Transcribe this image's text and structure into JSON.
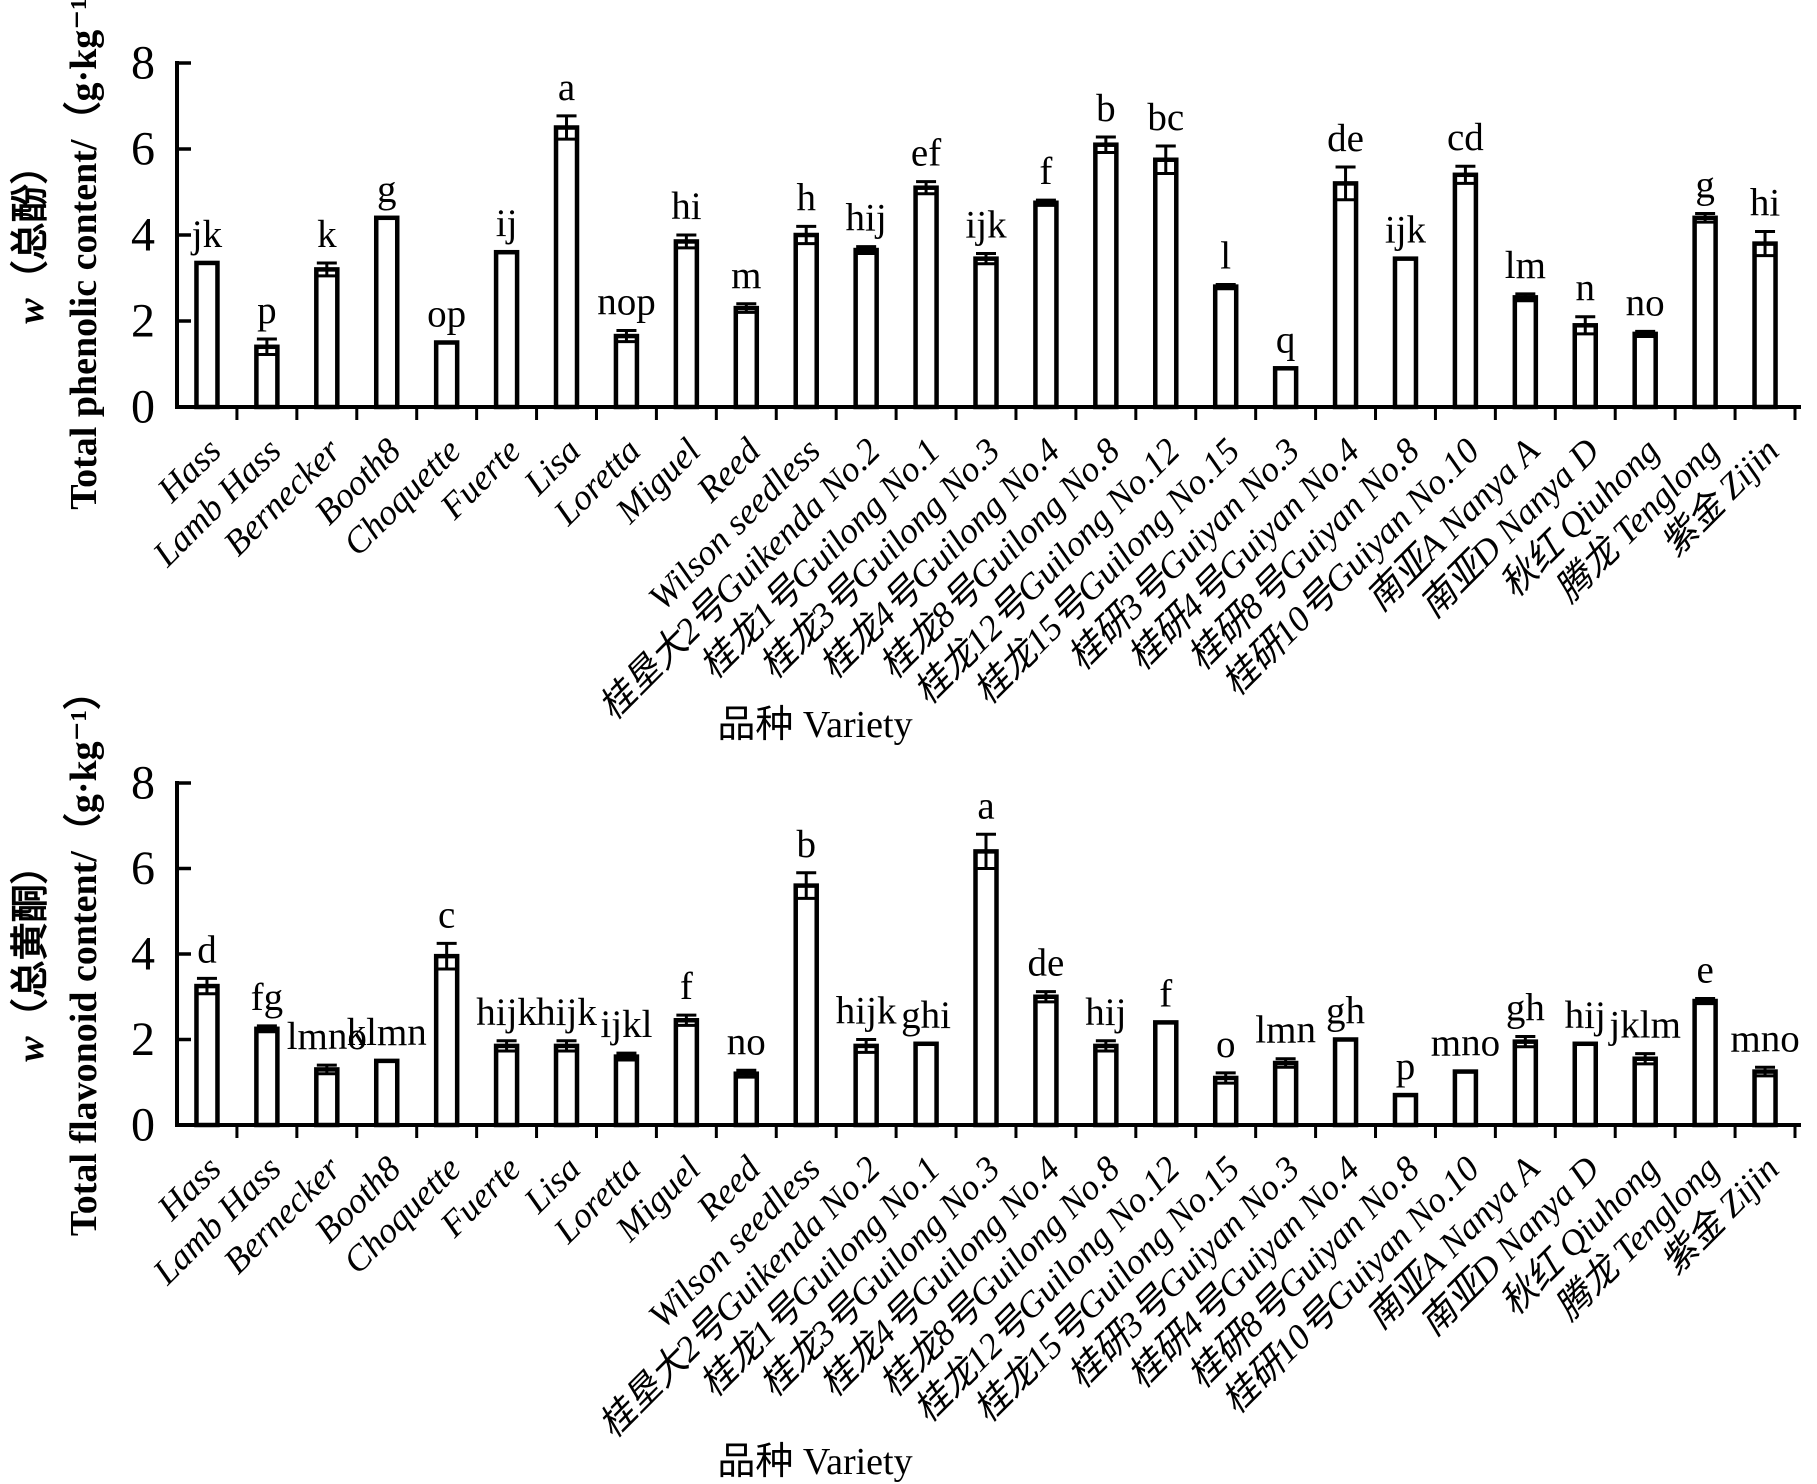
{
  "figure": {
    "background": "#ffffff",
    "ink_color": "#000000"
  },
  "chart_data": [
    {
      "type": "bar",
      "panel": "top",
      "ylabel_cn": "w（总酚）",
      "ylabel_en": "Total phenolic content/（g·kg⁻¹）",
      "xlabel": "品种 Variety",
      "ylim": [
        0,
        8
      ],
      "yticks": [
        0,
        2,
        4,
        6,
        8
      ],
      "grid": false,
      "legend": "none",
      "bar_fill": "#ffffff",
      "bar_stroke": "#000000",
      "categories": [
        "Hass",
        "Lamb Hass",
        "Bernecker",
        "Booth8",
        "Choquette",
        "Fuerte",
        "Lisa",
        "Loretta",
        "Miguel",
        "Reed",
        "Wilson seedless",
        "桂垦大2号Guikenda No.2",
        "桂龙1号Guilong No.1",
        "桂龙3号Guilong No.3",
        "桂龙4号Guilong No.4",
        "桂龙8号Guilong No.8",
        "桂龙12号Guilong No.12",
        "桂龙15号Guilong No.15",
        "桂研3号Guiyan No.3",
        "桂研4号Guiyan No.4",
        "桂研8号Guiyan No.8",
        "桂研10号Guiyan No.10",
        "南亚A Nanya A",
        "南亚D Nanya D",
        "秋红 Qiuhong",
        "腾龙 Tenglong",
        "紫金 Zijin"
      ],
      "values": [
        3.35,
        1.4,
        3.2,
        4.4,
        1.5,
        3.6,
        6.5,
        1.65,
        3.85,
        2.3,
        4.0,
        3.65,
        5.1,
        3.45,
        4.75,
        6.1,
        5.75,
        2.8,
        0.9,
        5.2,
        3.45,
        5.4,
        2.55,
        1.9,
        1.7,
        4.4,
        3.8
      ],
      "errors": [
        0,
        0.18,
        0.15,
        0,
        0,
        0,
        0.27,
        0.13,
        0.15,
        0.1,
        0.2,
        0.08,
        0.14,
        0.12,
        0.06,
        0.18,
        0.32,
        0.05,
        0,
        0.38,
        0,
        0.2,
        0.08,
        0.2,
        0.06,
        0.1,
        0.28
      ],
      "sig_letters": [
        "jk",
        "p",
        "k",
        "g",
        "op",
        "ij",
        "a",
        "nop",
        "hi",
        "m",
        "h",
        "hij",
        "ef",
        "ijk",
        "f",
        "b",
        "bc",
        "l",
        "q",
        "de",
        "ijk",
        "cd",
        "lm",
        "n",
        "no",
        "g",
        "hi"
      ]
    },
    {
      "type": "bar",
      "panel": "bottom",
      "ylabel_cn": "w（总黄酮）",
      "ylabel_en": "Total flavonoid content/（g·kg⁻¹）",
      "xlabel": "品种 Variety",
      "ylim": [
        0,
        8
      ],
      "yticks": [
        0,
        2,
        4,
        6,
        8
      ],
      "grid": false,
      "legend": "none",
      "bar_fill": "#ffffff",
      "bar_stroke": "#000000",
      "categories": [
        "Hass",
        "Lamb Hass",
        "Bernecker",
        "Booth8",
        "Choquette",
        "Fuerte",
        "Lisa",
        "Loretta",
        "Miguel",
        "Reed",
        "Wilson seedless",
        "桂垦大2号Guikenda No.2",
        "桂龙1号Guilong No.1",
        "桂龙3号Guilong No.3",
        "桂龙4号Guilong No.4",
        "桂龙8号Guilong No.8",
        "桂龙12号Guilong No.12",
        "桂龙15号Guilong No.15",
        "桂研3号Guiyan No.3",
        "桂研4号Guiyan No.4",
        "桂研8号Guiyan No.8",
        "桂研10号Guiyan No.10",
        "南亚A Nanya A",
        "南亚D Nanya D",
        "秋红 Qiuhong",
        "腾龙 Tenglong",
        "紫金 Zijin"
      ],
      "values": [
        3.25,
        2.25,
        1.3,
        1.5,
        3.95,
        1.85,
        1.85,
        1.6,
        2.45,
        1.2,
        5.6,
        1.85,
        1.9,
        6.4,
        3.0,
        1.85,
        2.4,
        1.1,
        1.45,
        2.0,
        0.7,
        1.25,
        1.95,
        1.9,
        1.55,
        2.9,
        1.25
      ],
      "errors": [
        0.18,
        0.07,
        0.1,
        0,
        0.3,
        0.12,
        0.12,
        0.08,
        0.12,
        0.08,
        0.3,
        0.15,
        0,
        0.4,
        0.12,
        0.12,
        0,
        0.12,
        0.1,
        0,
        0,
        0,
        0.12,
        0,
        0.12,
        0.06,
        0.1
      ],
      "sig_letters": [
        "d",
        "fg",
        "lmno",
        "klmn",
        "c",
        "hijk",
        "hijk",
        "ijkl",
        "f",
        "no",
        "b",
        "hijk",
        "ghi",
        "a",
        "de",
        "hij",
        "f",
        "o",
        "lmn",
        "gh",
        "p",
        "mno",
        "gh",
        "hij",
        "jklm",
        "e",
        "mno"
      ]
    }
  ]
}
